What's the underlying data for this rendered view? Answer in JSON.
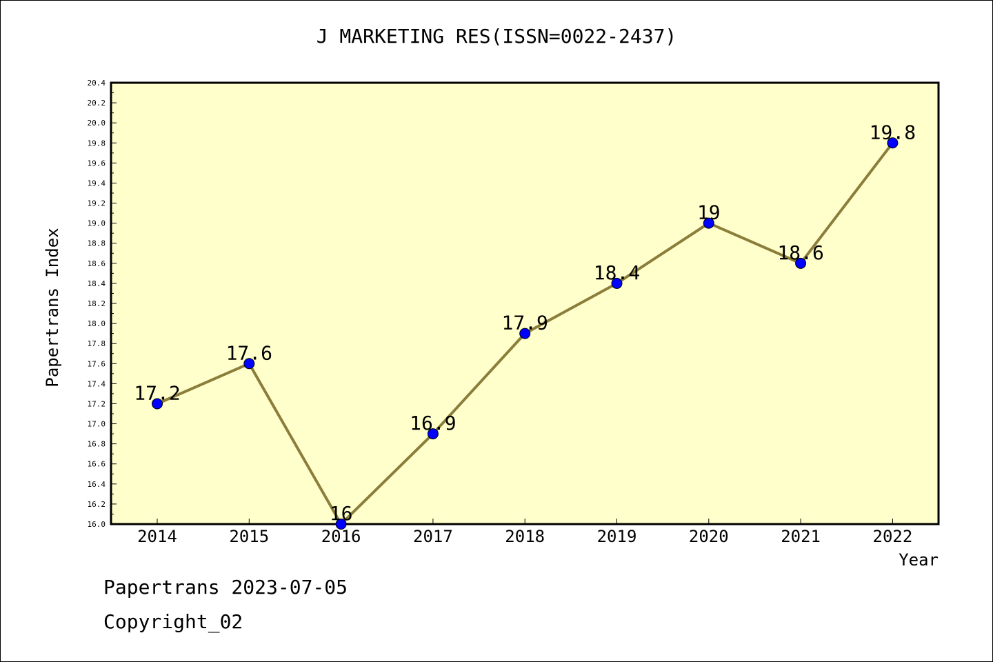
{
  "chart_data": {
    "type": "line",
    "title": "J MARKETING RES(ISSN=0022-2437)",
    "xlabel": "Year",
    "ylabel": "Papertrans Index",
    "categories": [
      "2014",
      "2015",
      "2016",
      "2017",
      "2018",
      "2019",
      "2020",
      "2021",
      "2022"
    ],
    "values": [
      17.2,
      17.6,
      16,
      16.9,
      17.9,
      18.4,
      19,
      18.6,
      19.8
    ],
    "value_labels": [
      "17.2",
      "17.6",
      "16",
      "16.9",
      "17.9",
      "18.4",
      "19",
      "18.6",
      "19.8"
    ],
    "ylim": [
      16.0,
      20.4
    ],
    "y_tick_labels": [
      "16.0",
      "16.2",
      "16.4",
      "16.6",
      "16.8",
      "17.0",
      "17.2",
      "17.4",
      "17.6",
      "17.8",
      "18.0",
      "18.2",
      "18.4",
      "18.6",
      "18.8",
      "19.0",
      "19.2",
      "19.4",
      "19.6",
      "19.8",
      "20.0",
      "20.2",
      "20.4"
    ],
    "grid": false,
    "colors": {
      "plot_background": "#ffffcc",
      "line": "#8b7d3a",
      "marker": "#0000ff"
    }
  },
  "footer": {
    "line1": "Papertrans 2023-07-05",
    "line2": "Copyright_02"
  }
}
